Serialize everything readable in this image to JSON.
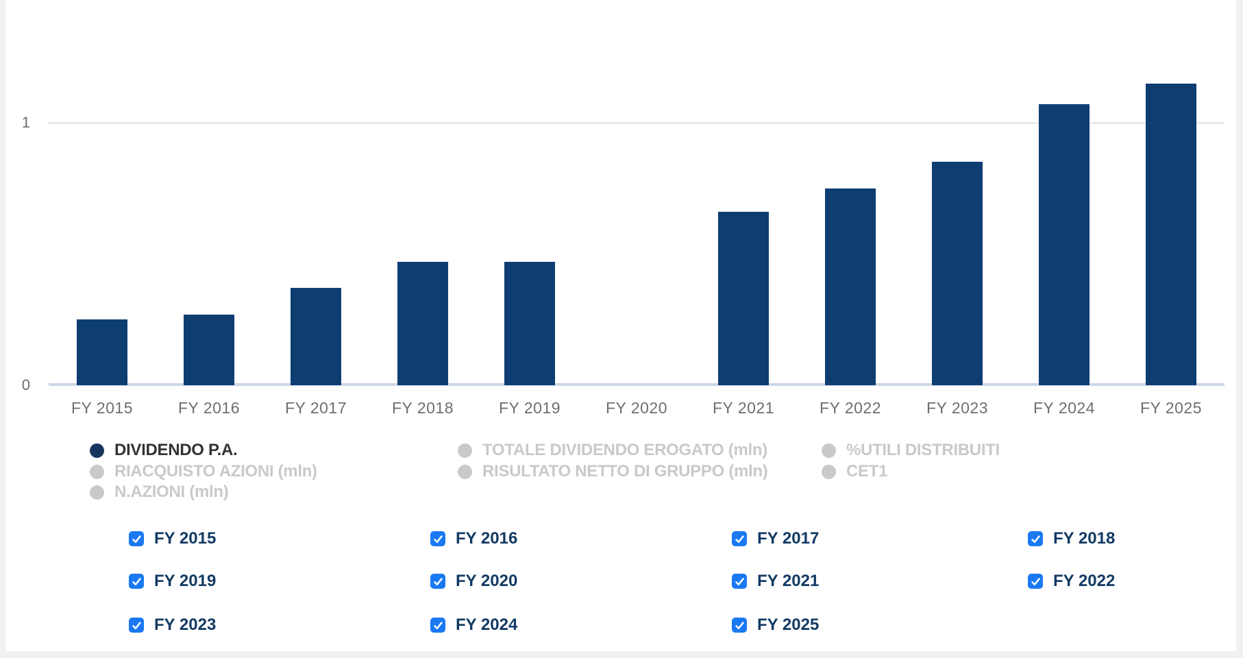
{
  "colors": {
    "page_background": "#f1f1f1",
    "panel_background": "#ffffff",
    "bar_fill": "#0e3d72",
    "legend_active_dot": "#17365d",
    "legend_active_text": "#333333",
    "legend_inactive": "#c9c9c9",
    "axis_label": "#6e6e6e",
    "axis_line": "#ccd7e8",
    "gridline": "#e9e9e9",
    "checkbox_fill": "#1a79f2",
    "checkbox_check": "#ffffff",
    "filter_label_text": "#123a63"
  },
  "chart_data": {
    "type": "bar",
    "title": "",
    "categories": [
      "FY 2015",
      "FY 2016",
      "FY 2017",
      "FY 2018",
      "FY 2019",
      "FY 2020",
      "FY 2021",
      "FY 2022",
      "FY 2023",
      "FY 2024",
      "FY 2025"
    ],
    "series": [
      {
        "name": "DIVIDENDO P.A.",
        "values": [
          0.25,
          0.27,
          0.37,
          0.47,
          0.47,
          0,
          0.66,
          0.75,
          0.85,
          1.07,
          1.15
        ],
        "color": "#0e3d72"
      }
    ],
    "y_ticks": [
      0,
      1
    ],
    "ylim": [
      0,
      1.47
    ],
    "xlabel": "",
    "ylabel": "",
    "grid": "single horizontal gridline at y=1, baseline at y=0",
    "legend_position": "below chart, left-aligned, three columns"
  },
  "legend": {
    "columns": [
      {
        "items": [
          {
            "label": "DIVIDENDO P.A.",
            "active": true
          },
          {
            "label": "RIACQUISTO AZIONI (mln)",
            "active": false
          },
          {
            "label": "N.AZIONI (mln)",
            "active": false
          }
        ]
      },
      {
        "items": [
          {
            "label": "TOTALE DIVIDENDO EROGATO (mln)",
            "active": false
          },
          {
            "label": "RISULTATO NETTO DI GRUPPO (mln)",
            "active": false
          }
        ]
      },
      {
        "items": [
          {
            "label": "%UTILI DISTRIBUITI",
            "active": false
          },
          {
            "label": "CET1",
            "active": false
          }
        ]
      }
    ]
  },
  "filters": {
    "checkboxes": [
      {
        "label": "FY 2015",
        "checked": true
      },
      {
        "label": "FY 2016",
        "checked": true
      },
      {
        "label": "FY 2017",
        "checked": true
      },
      {
        "label": "FY 2018",
        "checked": true
      },
      {
        "label": "FY 2019",
        "checked": true
      },
      {
        "label": "FY 2020",
        "checked": true
      },
      {
        "label": "FY 2021",
        "checked": true
      },
      {
        "label": "FY 2022",
        "checked": true
      },
      {
        "label": "FY 2023",
        "checked": true
      },
      {
        "label": "FY 2024",
        "checked": true
      },
      {
        "label": "FY 2025",
        "checked": true
      }
    ]
  }
}
